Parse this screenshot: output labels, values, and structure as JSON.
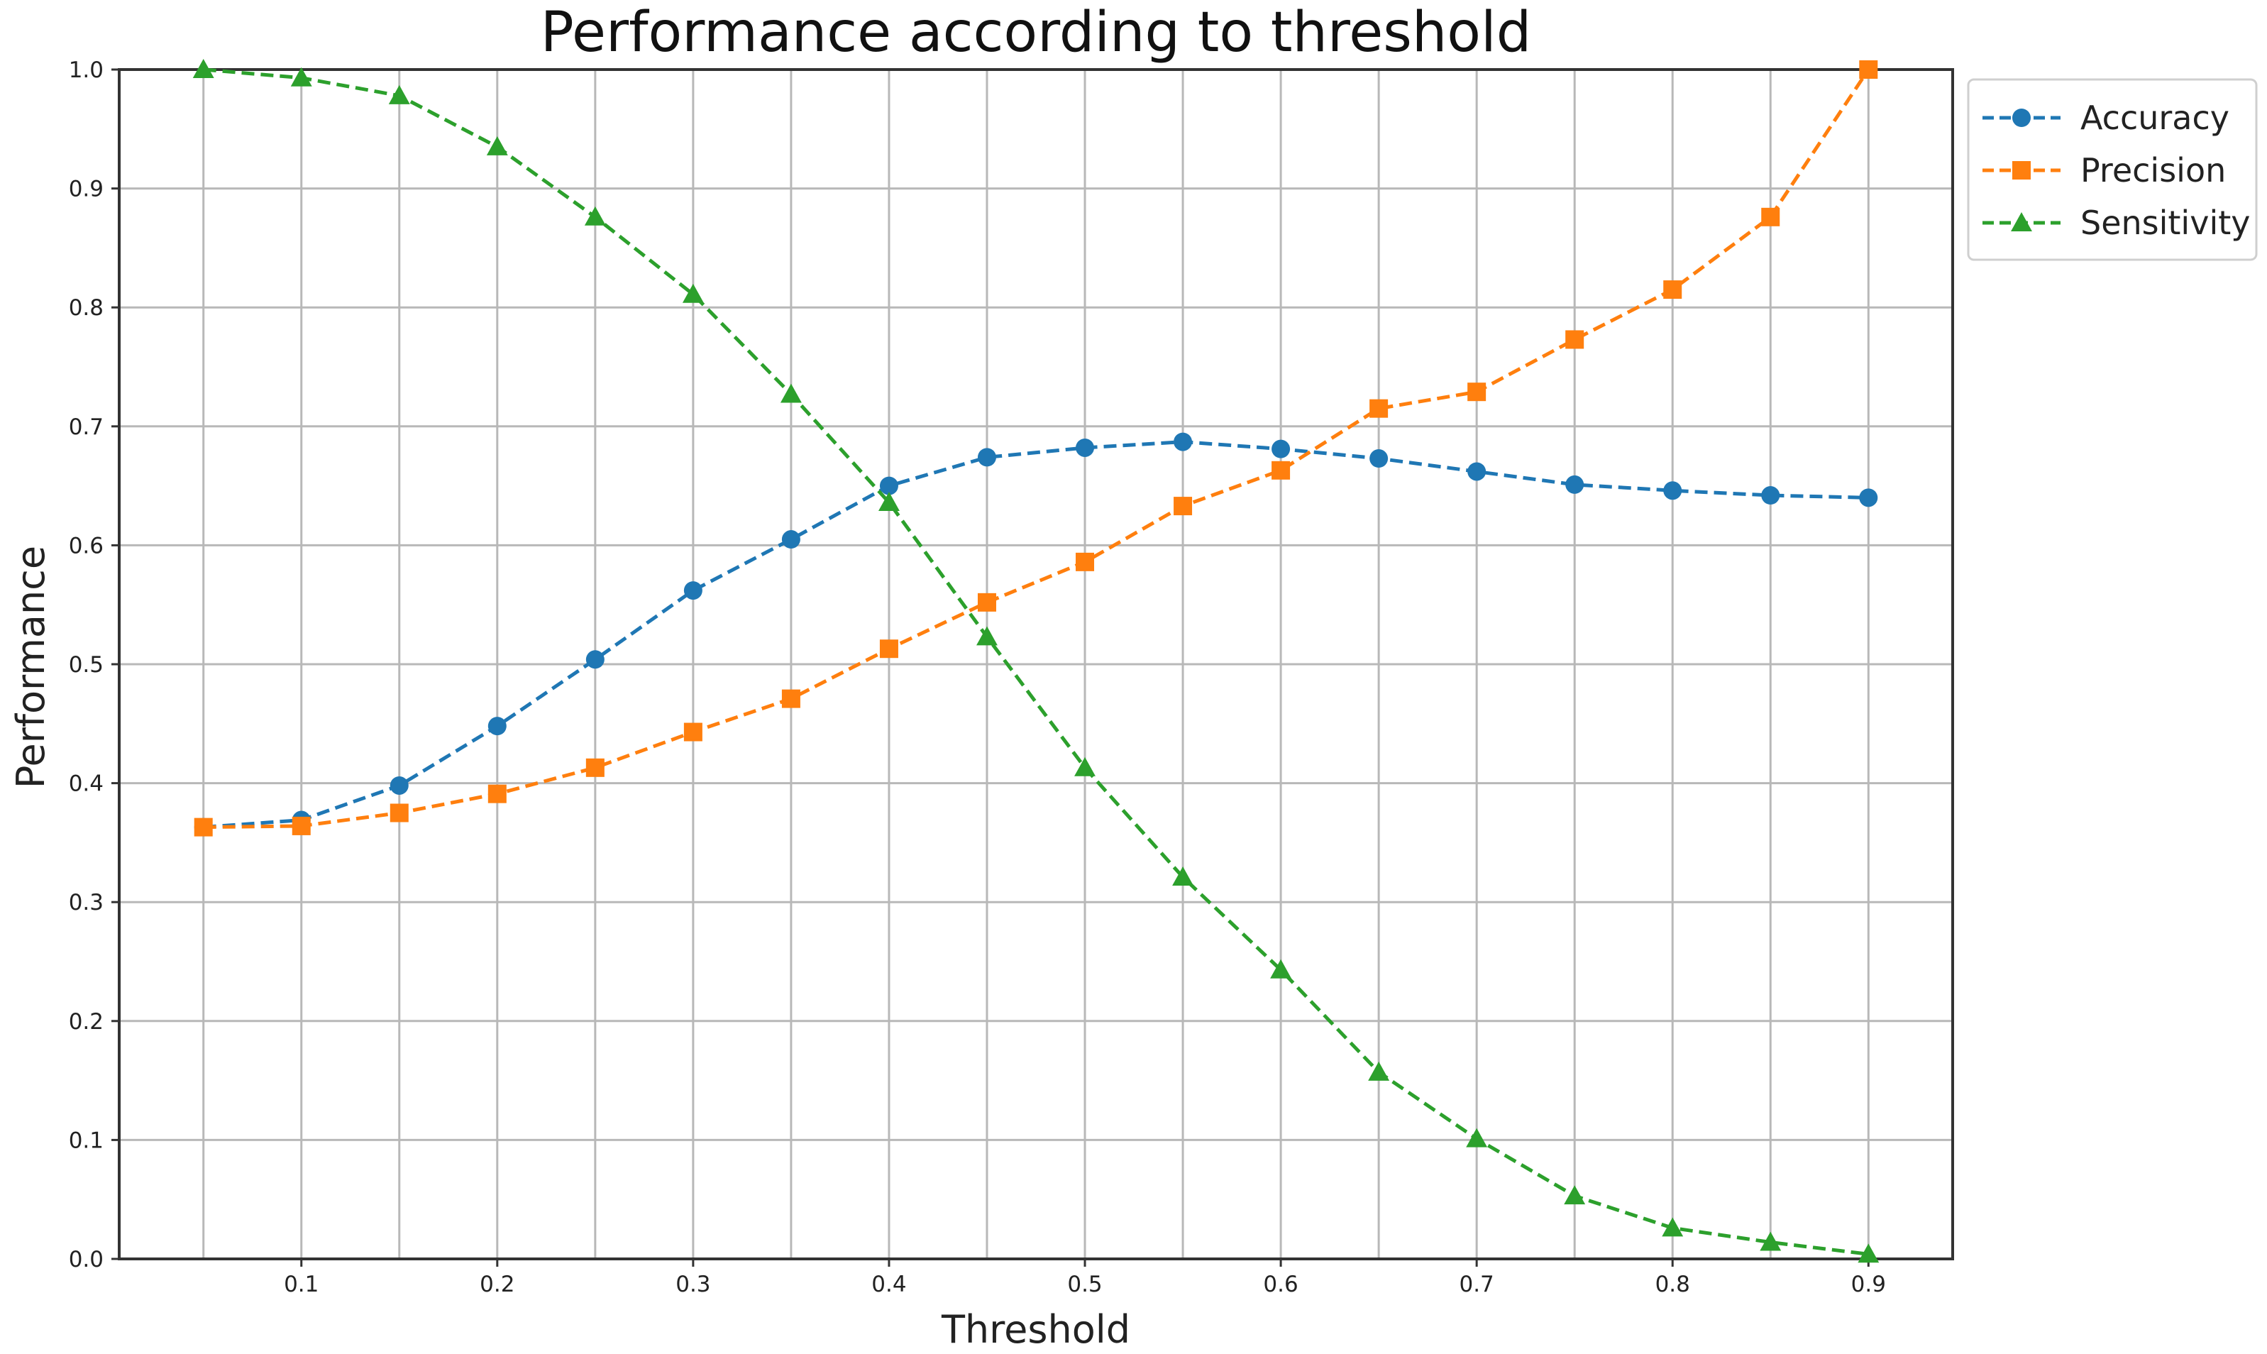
{
  "chart_data": {
    "type": "line",
    "title": "Performance according to threshold",
    "xlabel": "Threshold",
    "ylabel": "Performance",
    "xlim": [
      0.007,
      0.943
    ],
    "ylim": [
      0.0,
      1.0
    ],
    "x": [
      0.05,
      0.1,
      0.15,
      0.2,
      0.25,
      0.3,
      0.35,
      0.4,
      0.45,
      0.5,
      0.55,
      0.6,
      0.65,
      0.7,
      0.75,
      0.8,
      0.85,
      0.9
    ],
    "x_tick_values": [
      0.1,
      0.2,
      0.3,
      0.4,
      0.5,
      0.6,
      0.7,
      0.8,
      0.9
    ],
    "x_tick_labels": [
      "0.1",
      "0.2",
      "0.3",
      "0.4",
      "0.5",
      "0.6",
      "0.7",
      "0.8",
      "0.9"
    ],
    "y_tick_values": [
      0.0,
      0.1,
      0.2,
      0.3,
      0.4,
      0.5,
      0.6,
      0.7,
      0.8,
      0.9,
      1.0
    ],
    "y_tick_labels": [
      "0.0",
      "0.1",
      "0.2",
      "0.3",
      "0.4",
      "0.5",
      "0.6",
      "0.7",
      "0.8",
      "0.9",
      "1.0"
    ],
    "grid": true,
    "legend_position": "top-right-outside",
    "line_style": "dashed",
    "series": [
      {
        "name": "Accuracy",
        "color": "#1f77b4",
        "marker": "circle",
        "values": [
          0.363,
          0.369,
          0.398,
          0.448,
          0.504,
          0.562,
          0.605,
          0.65,
          0.674,
          0.682,
          0.687,
          0.681,
          0.673,
          0.662,
          0.651,
          0.646,
          0.642,
          0.64
        ]
      },
      {
        "name": "Precision",
        "color": "#ff7f0e",
        "marker": "square",
        "values": [
          0.363,
          0.364,
          0.375,
          0.391,
          0.413,
          0.443,
          0.471,
          0.513,
          0.552,
          0.586,
          0.633,
          0.663,
          0.715,
          0.729,
          0.773,
          0.815,
          0.876,
          1.0
        ]
      },
      {
        "name": "Sensitivity",
        "color": "#2ca02c",
        "marker": "triangle",
        "values": [
          1.0,
          0.993,
          0.978,
          0.935,
          0.876,
          0.811,
          0.727,
          0.636,
          0.523,
          0.413,
          0.321,
          0.243,
          0.157,
          0.101,
          0.053,
          0.026,
          0.014,
          0.004
        ]
      }
    ]
  }
}
